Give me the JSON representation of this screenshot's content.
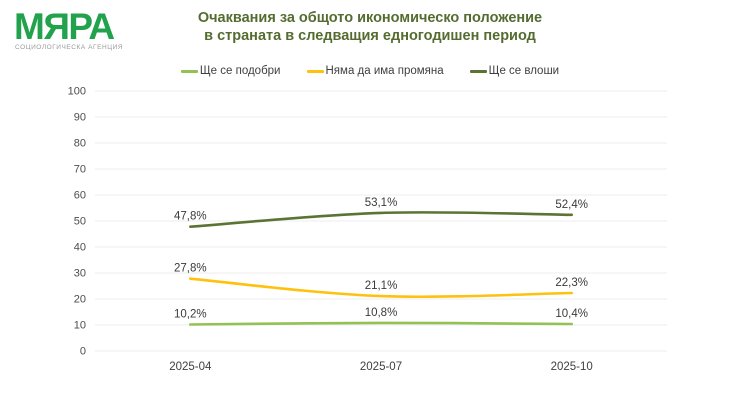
{
  "logo": {
    "name": "МЯРА",
    "subtitle": "СОЦИОЛОГИЧЕСКА АГЕНЦИЯ"
  },
  "title": {
    "line1": "Очаквания за общото икономическо положение",
    "line2": "в страната в следващия едногодишен период"
  },
  "colors": {
    "logo-green": "#22A24C",
    "title-color": "#546C2F",
    "grid-color": "#EDEDED",
    "axis-text": "#4C4C4C",
    "label-text": "#3A3A3A"
  },
  "chart_data": {
    "type": "line",
    "title": "Очаквания за общото икономическо положение в страната в следващия едногодишен период",
    "categories": [
      "2025-04",
      "2025-07",
      "2025-10"
    ],
    "series": [
      {
        "name": "Ще се подобри",
        "color": "#93C153",
        "values": [
          10.2,
          10.8,
          10.4
        ],
        "labels": [
          "10,2%",
          "10,8%",
          "10,4%"
        ]
      },
      {
        "name": "Няма да има промяна",
        "color": "#FEC10D",
        "values": [
          27.8,
          21.1,
          22.3
        ],
        "labels": [
          "27,8%",
          "21,1%",
          "22,3%"
        ]
      },
      {
        "name": "Ще се влоши",
        "color": "#5B7434",
        "values": [
          47.8,
          53.1,
          52.4
        ],
        "labels": [
          "47,8%",
          "53,1%",
          "52,4%"
        ]
      }
    ],
    "xlabel": "",
    "ylabel": "",
    "ylim": [
      0,
      100
    ],
    "ytick_step": 10,
    "grid": true,
    "legend_position": "top",
    "value_format": "comma-decimal-percent"
  }
}
